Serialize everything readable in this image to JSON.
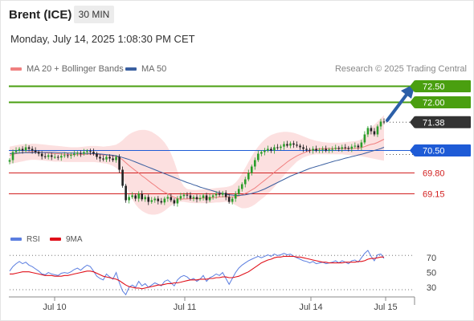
{
  "header": {
    "title": "Brent (ICE)",
    "timeframe": "30 MIN",
    "datetime": "Monday, July 14, 2025 1:08:30 PM CET",
    "credit": "Research © 2025 Trading Central"
  },
  "legend": {
    "ma20_label": "MA 20 + Bollinger Bands",
    "ma20_color": "#f08080",
    "ma50_label": "MA 50",
    "ma50_color": "#3a5fa0"
  },
  "rsi_legend": {
    "rsi_label": "RSI",
    "rsi_color": "#5b7ee0",
    "ma_label": "9MA",
    "ma_color": "#e0101a"
  },
  "chart_data": [
    {
      "type": "candlestick",
      "x_ticks": [
        "Jul 10",
        "Jul 11",
        "Jul 14",
        "Jul 15"
      ],
      "last_price": 71.38,
      "levels": [
        {
          "value": 72.5,
          "label": "72.50",
          "kind": "resistance",
          "color": "#4a9f10"
        },
        {
          "value": 72.0,
          "label": "72.00",
          "kind": "resistance",
          "color": "#4a9f10"
        },
        {
          "value": 70.5,
          "label": "70.50",
          "kind": "pivot",
          "color": "#1e5bd6"
        },
        {
          "value": 69.8,
          "label": "69.80",
          "kind": "support",
          "color": "#d22020"
        },
        {
          "value": 69.15,
          "label": "69.15",
          "kind": "support",
          "color": "#d22020"
        }
      ],
      "last_price_tag": {
        "label": "71.38",
        "color": "#333333"
      },
      "close": [
        70.2,
        70.45,
        70.5,
        70.55,
        70.5,
        70.6,
        70.55,
        70.5,
        70.45,
        70.4,
        70.32,
        70.3,
        70.35,
        70.3,
        70.3,
        70.28,
        70.33,
        70.35,
        70.34,
        70.36,
        70.4,
        70.42,
        70.4,
        70.45,
        70.48,
        70.46,
        70.4,
        70.3,
        70.25,
        70.22,
        70.3,
        70.25,
        70.2,
        70.3,
        69.9,
        69.4,
        68.95,
        69.05,
        69.1,
        69.0,
        69.15,
        68.98,
        69.05,
        68.9,
        68.95,
        69.0,
        68.92,
        68.88,
        69.0,
        69.05,
        68.95,
        68.85,
        69.0,
        69.08,
        69.12,
        69.1,
        69.0,
        69.05,
        68.98,
        69.02,
        69.1,
        68.95,
        69.05,
        69.1,
        69.15,
        69.12,
        69.18,
        69.05,
        68.9,
        69.0,
        69.15,
        69.3,
        69.45,
        69.6,
        69.8,
        70.0,
        70.2,
        70.4,
        70.45,
        70.5,
        70.55,
        70.5,
        70.6,
        70.58,
        70.62,
        70.7,
        70.65,
        70.72,
        70.68,
        70.65,
        70.6,
        70.55,
        70.52,
        70.5,
        70.55,
        70.5,
        70.52,
        70.55,
        70.5,
        70.53,
        70.55,
        70.58,
        70.55,
        70.6,
        70.58,
        70.55,
        70.62,
        70.65,
        70.6,
        70.75,
        71.0,
        71.2,
        71.1,
        71.0,
        71.25,
        71.4,
        71.38
      ],
      "ma20": [
        70.35,
        70.38,
        70.4,
        70.42,
        70.43,
        70.44,
        70.45,
        70.46,
        70.46,
        70.45,
        70.44,
        70.43,
        70.42,
        70.41,
        70.4,
        70.4,
        70.39,
        70.38,
        70.38,
        70.37,
        70.37,
        70.37,
        70.37,
        70.38,
        70.38,
        70.39,
        70.39,
        70.38,
        70.37,
        70.36,
        70.36,
        70.34,
        70.33,
        70.32,
        70.28,
        70.21,
        70.12,
        70.03,
        69.95,
        69.87,
        69.8,
        69.71,
        69.64,
        69.56,
        69.48,
        69.41,
        69.33,
        69.26,
        69.2,
        69.15,
        69.09,
        69.04,
        69.0,
        68.98,
        68.99,
        68.99,
        69.0,
        69.0,
        69.0,
        69.01,
        69.02,
        69.02,
        69.02,
        69.03,
        69.04,
        69.05,
        69.06,
        69.06,
        69.05,
        69.05,
        69.06,
        69.08,
        69.12,
        69.16,
        69.21,
        69.27,
        69.33,
        69.41,
        69.49,
        69.57,
        69.65,
        69.73,
        69.82,
        69.9,
        69.98,
        70.06,
        70.14,
        70.21,
        70.27,
        70.33,
        70.38,
        70.42,
        70.46,
        70.49,
        70.52,
        70.54,
        70.55,
        70.56,
        70.56,
        70.56,
        70.56,
        70.56,
        70.56,
        70.56,
        70.56,
        70.56,
        70.56,
        70.57,
        70.57,
        70.59,
        70.62,
        70.66,
        70.69,
        70.71,
        70.75,
        70.8,
        70.85
      ],
      "bb_upper": [
        70.62,
        70.64,
        70.66,
        70.68,
        70.69,
        70.7,
        70.7,
        70.71,
        70.71,
        70.7,
        70.69,
        70.68,
        70.67,
        70.66,
        70.65,
        70.64,
        70.63,
        70.62,
        70.61,
        70.6,
        70.6,
        70.6,
        70.61,
        70.62,
        70.63,
        70.64,
        70.64,
        70.64,
        70.63,
        70.62,
        70.63,
        70.64,
        70.66,
        70.68,
        70.74,
        70.82,
        70.92,
        71.0,
        71.06,
        71.1,
        71.13,
        71.14,
        71.14,
        71.12,
        71.08,
        71.02,
        70.95,
        70.86,
        70.75,
        70.6,
        70.4,
        70.15,
        69.85,
        69.55,
        69.38,
        69.3,
        69.28,
        69.27,
        69.27,
        69.28,
        69.29,
        69.3,
        69.31,
        69.32,
        69.33,
        69.34,
        69.35,
        69.36,
        69.38,
        69.42,
        69.5,
        69.62,
        69.78,
        69.96,
        70.14,
        70.32,
        70.48,
        70.62,
        70.74,
        70.84,
        70.92,
        70.98,
        71.02,
        71.05,
        71.07,
        71.08,
        71.08,
        71.07,
        71.05,
        71.02,
        70.98,
        70.94,
        70.9,
        70.86,
        70.83,
        70.8,
        70.78,
        70.76,
        70.75,
        70.74,
        70.74,
        70.74,
        70.74,
        70.75,
        70.76,
        70.77,
        70.78,
        70.79,
        70.81,
        70.85,
        70.95,
        71.1,
        71.22,
        71.3,
        71.4,
        71.5,
        71.6
      ],
      "bb_lower": [
        70.08,
        70.1,
        70.12,
        70.14,
        70.16,
        70.18,
        70.2,
        70.21,
        70.21,
        70.2,
        70.19,
        70.18,
        70.17,
        70.16,
        70.15,
        70.15,
        70.15,
        70.14,
        70.14,
        70.14,
        70.14,
        70.14,
        70.14,
        70.14,
        70.14,
        70.14,
        70.14,
        70.13,
        70.12,
        70.1,
        70.09,
        70.06,
        70.02,
        69.96,
        69.85,
        69.65,
        69.42,
        69.18,
        68.98,
        68.82,
        68.7,
        68.62,
        68.56,
        68.52,
        68.5,
        68.5,
        68.52,
        68.56,
        68.62,
        68.7,
        68.78,
        68.84,
        68.88,
        68.9,
        68.9,
        68.88,
        68.87,
        68.86,
        68.86,
        68.86,
        68.86,
        68.86,
        68.86,
        68.87,
        68.88,
        68.88,
        68.89,
        68.9,
        68.88,
        68.85,
        68.8,
        68.74,
        68.7,
        68.7,
        68.72,
        68.76,
        68.82,
        68.9,
        68.98,
        69.06,
        69.15,
        69.25,
        69.36,
        69.48,
        69.6,
        69.72,
        69.84,
        69.95,
        70.05,
        70.15,
        70.22,
        70.28,
        70.32,
        70.35,
        70.37,
        70.38,
        70.38,
        70.38,
        70.38,
        70.38,
        70.38,
        70.38,
        70.38,
        70.38,
        70.37,
        70.36,
        70.35,
        70.34,
        70.33,
        70.32,
        70.3,
        70.28,
        70.26,
        70.24,
        70.22,
        70.2,
        70.18
      ],
      "ma50": [
        70.4,
        70.41,
        70.42,
        70.42,
        70.43,
        70.43,
        70.43,
        70.43,
        70.44,
        70.44,
        70.44,
        70.44,
        70.44,
        70.44,
        70.44,
        70.43,
        70.43,
        70.43,
        70.42,
        70.42,
        70.42,
        70.42,
        70.41,
        70.41,
        70.41,
        70.41,
        70.4,
        70.4,
        70.39,
        70.38,
        70.37,
        70.36,
        70.35,
        70.33,
        70.31,
        70.28,
        70.25,
        70.22,
        70.18,
        70.14,
        70.1,
        70.06,
        70.02,
        69.98,
        69.94,
        69.9,
        69.86,
        69.82,
        69.78,
        69.74,
        69.7,
        69.66,
        69.62,
        69.58,
        69.54,
        69.5,
        69.47,
        69.43,
        69.4,
        69.36,
        69.33,
        69.3,
        69.27,
        69.24,
        69.21,
        69.18,
        69.16,
        69.14,
        69.12,
        69.11,
        69.1,
        69.1,
        69.11,
        69.12,
        69.14,
        69.16,
        69.19,
        69.22,
        69.26,
        69.3,
        69.35,
        69.4,
        69.45,
        69.5,
        69.55,
        69.6,
        69.65,
        69.7,
        69.74,
        69.78,
        69.82,
        69.86,
        69.9,
        69.94,
        69.97,
        70.0,
        70.03,
        70.06,
        70.09,
        70.12,
        70.15,
        70.18,
        70.2,
        70.23,
        70.26,
        70.28,
        70.31,
        70.33,
        70.36,
        70.38,
        70.41,
        70.44,
        70.47,
        70.5,
        70.53,
        70.56,
        70.6
      ]
    },
    {
      "type": "line",
      "name": "RSI",
      "y_ticks": [
        70,
        50,
        30
      ],
      "ylim": [
        20,
        80
      ],
      "last_value": 69,
      "rsi": [
        52,
        58,
        62,
        65,
        62,
        64,
        60,
        58,
        55,
        52,
        48,
        47,
        50,
        48,
        47,
        46,
        49,
        50,
        49,
        51,
        54,
        56,
        53,
        57,
        60,
        58,
        52,
        45,
        42,
        40,
        48,
        44,
        41,
        50,
        36,
        25,
        20,
        30,
        33,
        30,
        38,
        32,
        35,
        30,
        33,
        36,
        34,
        32,
        38,
        40,
        36,
        32,
        40,
        44,
        46,
        44,
        40,
        42,
        38,
        41,
        46,
        38,
        43,
        45,
        48,
        46,
        50,
        42,
        34,
        42,
        50,
        56,
        60,
        63,
        66,
        68,
        70,
        72,
        70,
        72,
        74,
        72,
        75,
        73,
        74,
        76,
        74,
        75,
        72,
        70,
        68,
        66,
        65,
        63,
        65,
        62,
        63,
        64,
        62,
        63,
        64,
        66,
        63,
        66,
        64,
        62,
        66,
        67,
        64,
        70,
        76,
        80,
        72,
        66,
        74,
        75,
        69
      ],
      "ma9": [
        48,
        48,
        49,
        50,
        51,
        51,
        51,
        50,
        49,
        48,
        47,
        46,
        46,
        46,
        45,
        45,
        45,
        46,
        46,
        47,
        48,
        49,
        50,
        51,
        52,
        52,
        51,
        49,
        47,
        45,
        44,
        43,
        42,
        41,
        39,
        36,
        33,
        31,
        30,
        29,
        29,
        28,
        29,
        30,
        31,
        32,
        33,
        33,
        34,
        35,
        35,
        36,
        36,
        37,
        38,
        39,
        40,
        40,
        40,
        41,
        41,
        41,
        42,
        42,
        43,
        43,
        44,
        44,
        43,
        43,
        44,
        45,
        47,
        49,
        51,
        54,
        57,
        60,
        63,
        65,
        67,
        68,
        70,
        71,
        71,
        72,
        72,
        72,
        72,
        71,
        71,
        70,
        69,
        68,
        67,
        66,
        65,
        64,
        64,
        63,
        63,
        63,
        63,
        63,
        64,
        64,
        64,
        64,
        65,
        65,
        66,
        68,
        69,
        69,
        70,
        71,
        71
      ]
    }
  ]
}
